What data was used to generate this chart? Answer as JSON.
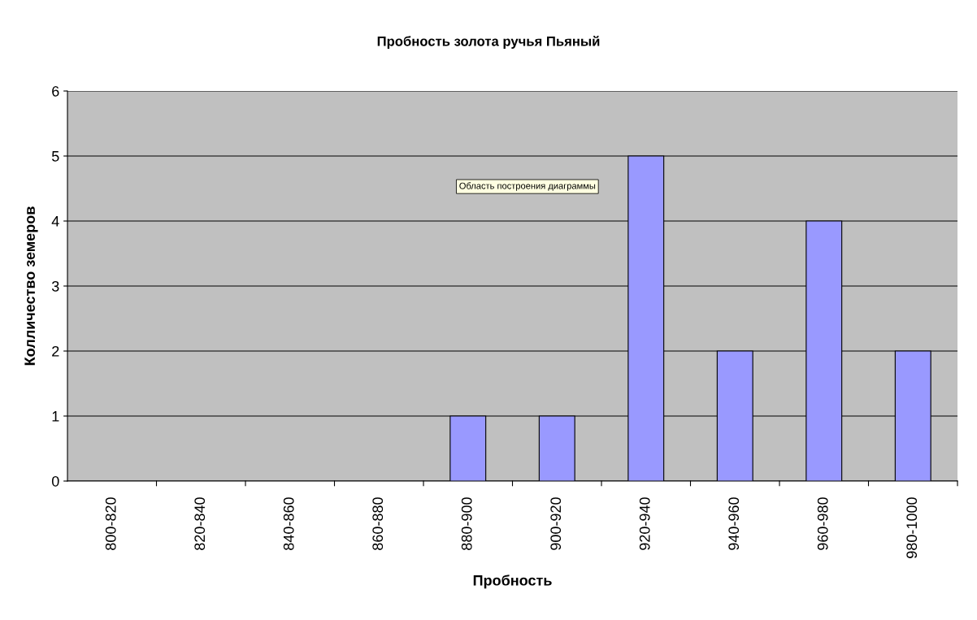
{
  "chart_data": {
    "type": "bar",
    "title": "Пробность золота ручья Пьяный",
    "xlabel": "Пробность",
    "ylabel": "Колличество земеров",
    "categories": [
      "800-820",
      "820-840",
      "840-860",
      "860-880",
      "880-900",
      "900-920",
      "920-940",
      "940-960",
      "960-980",
      "980-1000"
    ],
    "values": [
      0,
      0,
      0,
      0,
      1,
      1,
      5,
      2,
      4,
      2
    ],
    "color": "#9999ff",
    "ylim": [
      0,
      6
    ],
    "yticks": [
      0,
      1,
      2,
      3,
      4,
      5,
      6
    ],
    "grid": "y",
    "annotations": [
      "Область построения диаграммы"
    ]
  }
}
